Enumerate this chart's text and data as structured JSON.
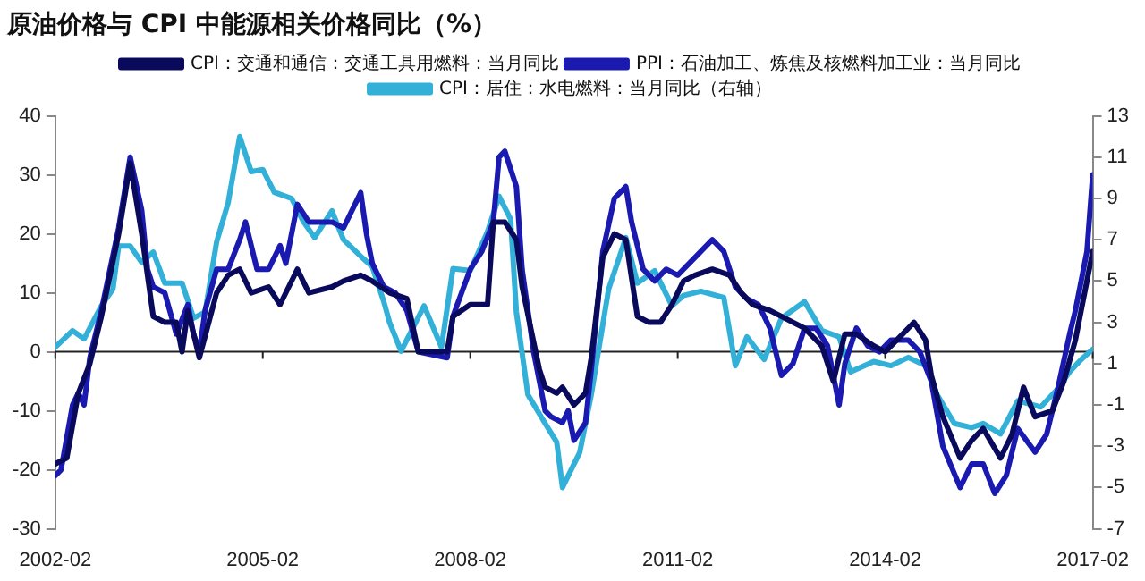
{
  "chart_data": {
    "type": "line",
    "title": "原油价格与 CPI 中能源相关价格同比（%）",
    "xlim": [
      "2002-02",
      "2017-02"
    ],
    "xticks": [
      "2002-02",
      "2005-02",
      "2008-02",
      "2011-02",
      "2014-02",
      "2017-02"
    ],
    "ylim": [
      -30,
      40
    ],
    "yticks": [
      -30,
      -20,
      -10,
      0,
      10,
      20,
      30,
      40
    ],
    "y2lim": [
      -7,
      13
    ],
    "y2ticks": [
      -7,
      -5,
      -3,
      -1,
      1,
      3,
      5,
      7,
      9,
      11,
      13
    ],
    "grid": false,
    "ref_lines": [
      {
        "axis": "y",
        "value": 0,
        "color": "#222222"
      }
    ],
    "legend": "top",
    "marker": "none",
    "line_style": "solid",
    "series": [
      {
        "name": "CPI：交通和通信：交通工具用燃料：当月同比",
        "color": "#0a0a5c",
        "x": [
          "2002-02",
          "2002-04",
          "2002-06",
          "2002-08",
          "2002-10",
          "2003-01",
          "2003-03",
          "2003-05",
          "2003-07",
          "2003-09",
          "2003-11",
          "2003-12",
          "2004-01",
          "2004-02",
          "2004-03",
          "2004-06",
          "2004-08",
          "2004-10",
          "2004-12",
          "2005-03",
          "2005-05",
          "2005-08",
          "2005-10",
          "2006-02",
          "2006-04",
          "2006-07",
          "2006-09",
          "2006-12",
          "2007-03",
          "2007-05",
          "2007-10",
          "2007-11",
          "2008-02",
          "2008-05",
          "2008-06",
          "2008-08",
          "2008-10",
          "2008-11",
          "2009-02",
          "2009-03",
          "2009-05",
          "2009-06",
          "2009-08",
          "2009-10",
          "2009-11",
          "2010-01",
          "2010-03",
          "2010-05",
          "2010-07",
          "2010-09",
          "2010-11",
          "2011-01",
          "2011-03",
          "2011-05",
          "2011-08",
          "2011-11",
          "2012-01",
          "2012-03",
          "2012-06",
          "2012-10",
          "2012-12",
          "2013-03",
          "2013-05",
          "2013-07",
          "2013-09",
          "2013-12",
          "2014-02",
          "2014-05",
          "2014-07",
          "2014-09",
          "2014-10",
          "2014-12",
          "2015-03",
          "2015-05",
          "2015-07",
          "2015-10",
          "2015-12",
          "2016-02",
          "2016-04",
          "2016-07",
          "2016-09",
          "2016-11",
          "2017-01",
          "2017-02"
        ],
        "values": [
          -19,
          -18,
          -7,
          -2,
          6,
          20,
          32,
          20,
          6,
          5,
          5,
          0,
          7,
          3,
          -1,
          10,
          13,
          14,
          10,
          11,
          8,
          14,
          10,
          11,
          12,
          13,
          12,
          10,
          9,
          0,
          0,
          6,
          8,
          8,
          22,
          22,
          19,
          11,
          -3,
          -6,
          -7,
          -6,
          -9,
          -7,
          -1,
          16,
          20,
          19,
          6,
          5,
          5,
          8,
          12,
          13,
          14,
          13,
          10,
          8,
          7,
          5,
          4,
          1,
          -5,
          3,
          3,
          1,
          0,
          3,
          5,
          2,
          -4,
          -11,
          -18,
          -15,
          -13,
          -18,
          -14,
          -6,
          -11,
          -10,
          -5,
          2,
          12,
          17
        ]
      },
      {
        "name": "PPI：石油加工、炼焦及核燃料加工业：当月同比",
        "color": "#1a1ab0",
        "x": [
          "2002-02",
          "2002-03",
          "2002-05",
          "2002-06",
          "2002-07",
          "2002-08",
          "2002-10",
          "2003-01",
          "2003-03",
          "2003-05",
          "2003-06",
          "2003-07",
          "2003-09",
          "2003-11",
          "2004-01",
          "2004-02",
          "2004-03",
          "2004-04",
          "2004-06",
          "2004-08",
          "2004-10",
          "2004-11",
          "2005-01",
          "2005-03",
          "2005-05",
          "2005-06",
          "2005-08",
          "2005-10",
          "2005-12",
          "2006-02",
          "2006-04",
          "2006-07",
          "2006-08",
          "2006-09",
          "2006-11",
          "2007-01",
          "2007-03",
          "2007-05",
          "2007-10",
          "2007-11",
          "2008-02",
          "2008-04",
          "2008-06",
          "2008-07",
          "2008-08",
          "2008-10",
          "2008-11",
          "2009-01",
          "2009-03",
          "2009-04",
          "2009-06",
          "2009-07",
          "2009-08",
          "2009-10",
          "2009-11",
          "2010-01",
          "2010-03",
          "2010-05",
          "2010-06",
          "2010-08",
          "2010-10",
          "2010-12",
          "2011-02",
          "2011-04",
          "2011-06",
          "2011-08",
          "2011-10",
          "2011-12",
          "2012-02",
          "2012-04",
          "2012-06",
          "2012-08",
          "2012-10",
          "2012-12",
          "2013-02",
          "2013-04",
          "2013-06",
          "2013-07",
          "2013-09",
          "2013-11",
          "2014-01",
          "2014-03",
          "2014-06",
          "2014-08",
          "2014-10",
          "2014-12",
          "2015-03",
          "2015-05",
          "2015-07",
          "2015-09",
          "2015-11",
          "2016-01",
          "2016-04",
          "2016-06",
          "2016-08",
          "2016-10",
          "2016-11",
          "2017-01",
          "2017-02"
        ],
        "values": [
          -21,
          -20,
          -9,
          -7,
          -9,
          -1,
          7,
          21,
          33,
          24,
          14,
          11,
          10,
          3,
          8,
          3,
          0,
          7,
          14,
          14,
          19,
          22,
          14,
          14,
          18,
          15,
          25,
          22,
          22,
          22,
          21,
          27,
          20,
          15,
          11,
          10,
          7,
          0,
          -1,
          6,
          14,
          17,
          22,
          33,
          34,
          28,
          14,
          0,
          -10,
          -11,
          -12,
          -10,
          -15,
          -12,
          -3,
          17,
          26,
          28,
          22,
          14,
          12,
          14,
          13,
          15,
          17,
          19,
          17,
          11,
          9,
          8,
          4,
          -4,
          -2,
          4,
          4,
          1,
          -9,
          -2,
          4,
          1,
          0,
          2,
          2,
          0,
          -5,
          -16,
          -23,
          -19,
          -19,
          -24,
          -21,
          -13,
          -17,
          -14,
          -6,
          3,
          7,
          17,
          30
        ]
      },
      {
        "name": "CPI：居住：水电燃料：当月同比（右轴）",
        "color": "#33b0d8",
        "axis": "y2",
        "x": [
          "2002-02",
          "2002-05",
          "2002-07",
          "2002-10",
          "2002-12",
          "2003-01",
          "2003-03",
          "2003-05",
          "2003-07",
          "2003-09",
          "2003-12",
          "2004-02",
          "2004-04",
          "2004-06",
          "2004-08",
          "2004-10",
          "2004-12",
          "2005-02",
          "2005-04",
          "2005-07",
          "2005-09",
          "2005-11",
          "2006-02",
          "2006-04",
          "2006-07",
          "2006-09",
          "2006-11",
          "2006-12",
          "2007-02",
          "2007-06",
          "2007-09",
          "2007-11",
          "2008-02",
          "2008-05",
          "2008-07",
          "2008-09",
          "2008-10",
          "2008-12",
          "2009-03",
          "2009-05",
          "2009-06",
          "2009-09",
          "2009-11",
          "2010-02",
          "2010-05",
          "2010-07",
          "2010-10",
          "2011-01",
          "2011-03",
          "2011-06",
          "2011-10",
          "2011-12",
          "2012-02",
          "2012-05",
          "2012-08",
          "2012-12",
          "2013-03",
          "2013-06",
          "2013-08",
          "2013-12",
          "2014-03",
          "2014-06",
          "2014-09",
          "2014-11",
          "2015-02",
          "2015-05",
          "2015-07",
          "2015-10",
          "2016-01",
          "2016-05",
          "2016-08",
          "2016-10",
          "2016-12",
          "2017-02"
        ],
        "values": [
          1.8,
          2.6,
          2.2,
          3.8,
          4.6,
          6.7,
          6.7,
          5.9,
          6.4,
          4.9,
          4.9,
          3.2,
          3.5,
          6.9,
          8.8,
          12,
          10.3,
          10.4,
          9.3,
          9.0,
          7.9,
          7.1,
          8.4,
          7.0,
          6.2,
          5.7,
          4.0,
          3.0,
          1.6,
          3.8,
          1.8,
          5.6,
          5.5,
          7.4,
          9.1,
          8.0,
          3.5,
          -0.5,
          -1.9,
          -2.8,
          -5.0,
          -3.3,
          -0.5,
          4.6,
          7.1,
          4.9,
          5.5,
          3.8,
          4.3,
          4.5,
          4.2,
          0.9,
          2.3,
          1.2,
          3.2,
          4.0,
          2.6,
          2.3,
          0.6,
          1.1,
          0.9,
          1.3,
          0.9,
          -0.5,
          -1.9,
          -2.1,
          -1.9,
          -2.4,
          -0.8,
          -1.1,
          -0.2,
          0.6,
          1.2,
          1.7
        ]
      }
    ]
  }
}
